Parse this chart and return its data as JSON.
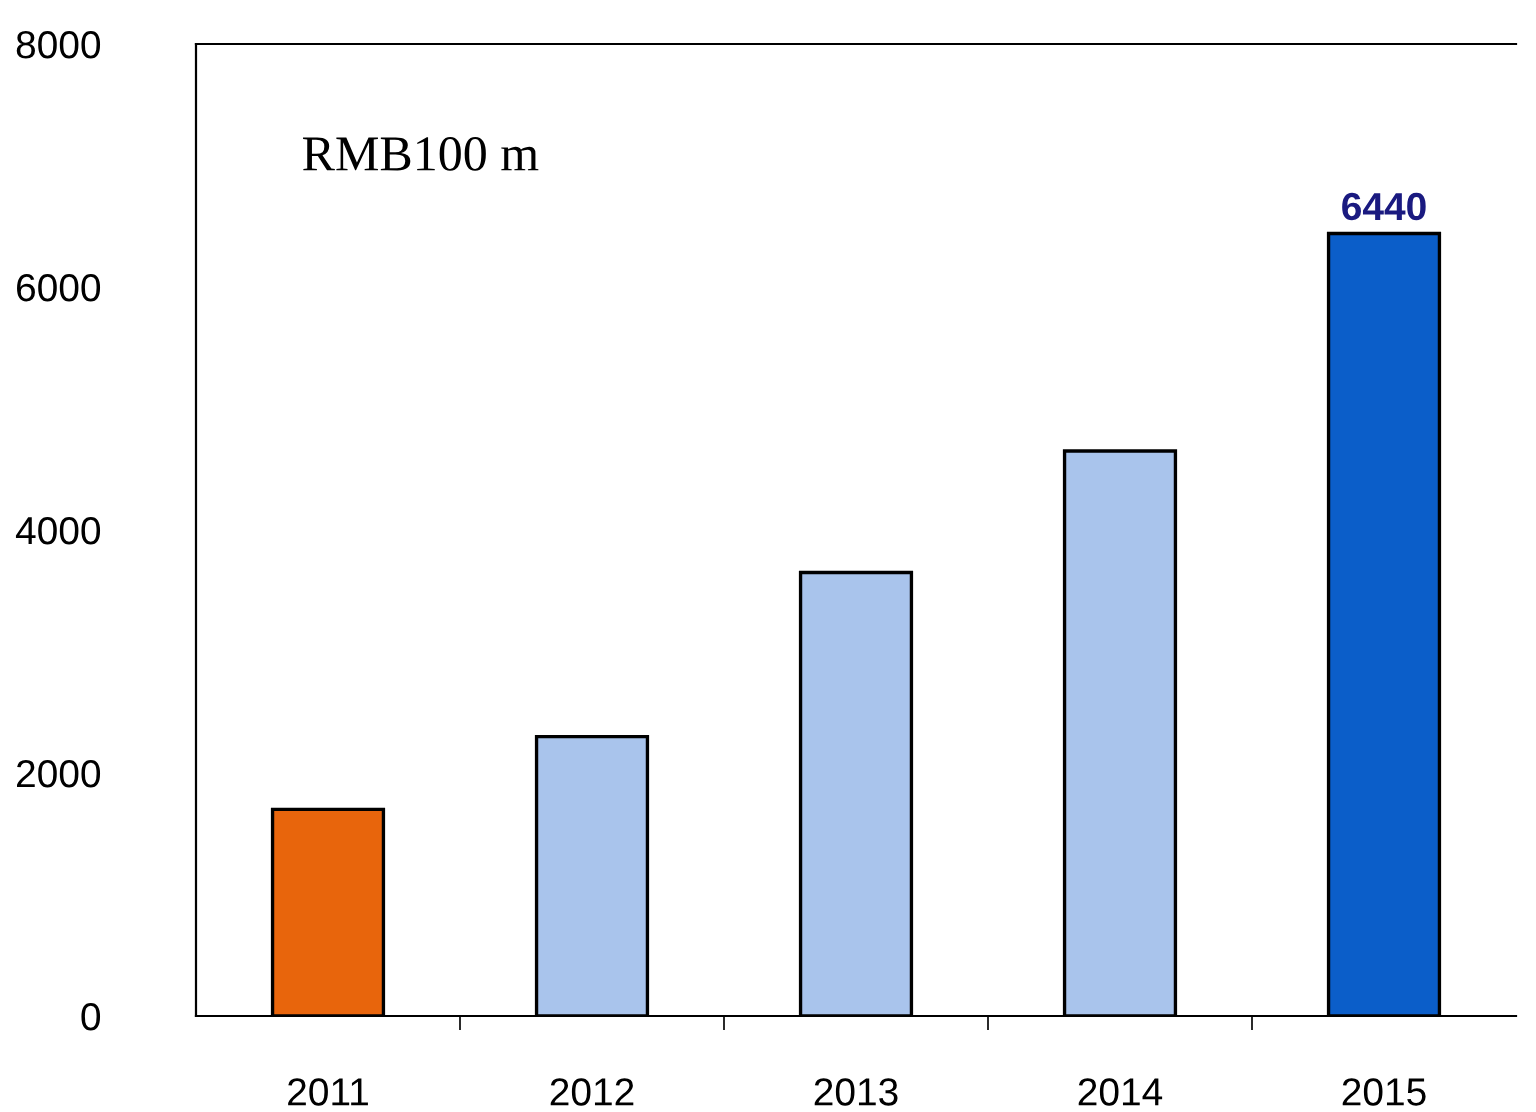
{
  "chart_data": {
    "type": "bar",
    "categories": [
      "2011",
      "2012",
      "2013",
      "2014",
      "2015"
    ],
    "values": [
      1700,
      2300,
      3650,
      4650,
      6440
    ],
    "colors": [
      "#e8650c",
      "#a9c4ec",
      "#a9c4ec",
      "#a9c4ec",
      "#0b5ec9"
    ],
    "value_labels": [
      null,
      null,
      null,
      null,
      "6440"
    ],
    "annotations": [
      "RMB100 m"
    ],
    "ylim": [
      0,
      8000
    ],
    "yticks": [
      0,
      2000,
      4000,
      6000,
      8000
    ],
    "grid": false,
    "legend": false
  }
}
